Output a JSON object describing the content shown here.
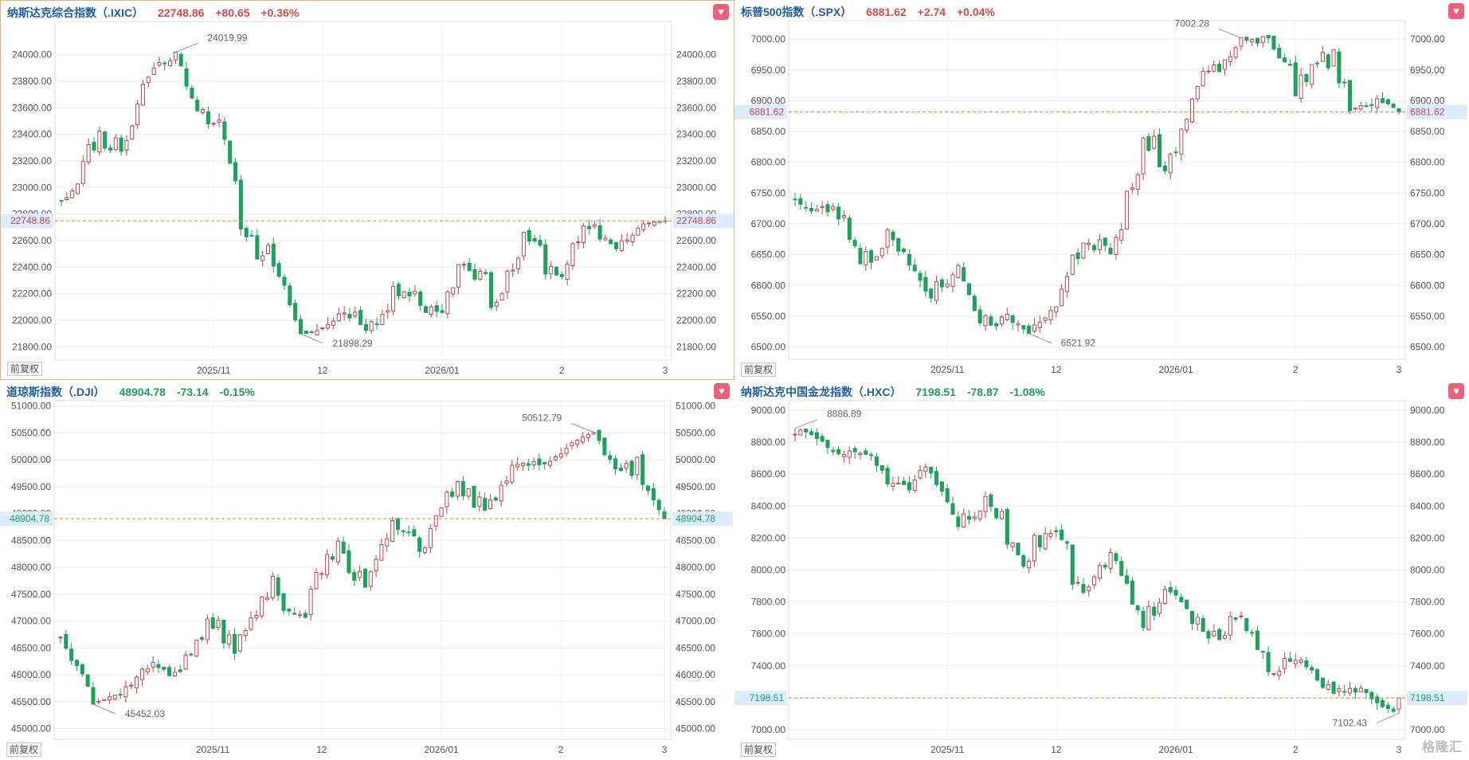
{
  "colors": {
    "up": "#c9434e",
    "down": "#1aa35a",
    "grid": "#ececec",
    "ref": "#e08a2a",
    "axis": "#555555"
  },
  "adjust_label": "前复权",
  "favorite_icon": "heart-icon",
  "watermark": "格隆汇",
  "panels": [
    {
      "name": "纳斯达克综合指数（.IXIC）",
      "price": "22748.86",
      "change": "+80.65",
      "pct": "+0.36%",
      "dir": "up",
      "active": true,
      "chart_data": {
        "type": "candlestick",
        "yticks": [
          21800,
          22000,
          22200,
          22400,
          22600,
          22800,
          23000,
          23200,
          23400,
          23600,
          23800,
          24000
        ],
        "ylim": [
          21700,
          24250
        ],
        "ytick_labels": [
          "21800.00",
          "22000.00",
          "22200.00",
          "22400.00",
          "22600.00",
          "22800.00",
          "23000.00",
          "23200.00",
          "23400.00",
          "23600.00",
          "23800.00",
          "24000.00"
        ],
        "xticks": [
          {
            "label": "2025/11",
            "i": 28
          },
          {
            "label": "12",
            "i": 48
          },
          {
            "label": "2026/01",
            "i": 70
          },
          {
            "label": "2",
            "i": 92
          },
          {
            "label": "3",
            "i": 111
          }
        ],
        "ref_value": 22748.86,
        "ref_label": "22748.86",
        "high_label": "24019.99",
        "high_i": 21,
        "low_label": "21898.29",
        "low_i": 44,
        "start": 22900,
        "end": 22748.86,
        "min": 21898.29,
        "max": 24019.99,
        "seed": 11
      }
    },
    {
      "name": "标普500指数（.SPX）",
      "price": "6881.62",
      "change": "+2.74",
      "pct": "+0.04%",
      "dir": "up",
      "active": false,
      "chart_data": {
        "type": "candlestick",
        "yticks": [
          6500,
          6550,
          6600,
          6650,
          6700,
          6750,
          6800,
          6850,
          6900,
          6950,
          7000
        ],
        "ylim": [
          6480,
          7030
        ],
        "ytick_labels": [
          "6500.00",
          "6550.00",
          "6600.00",
          "6650.00",
          "6700.00",
          "6750.00",
          "6800.00",
          "6850.00",
          "6900.00",
          "6950.00",
          "7000.00"
        ],
        "xticks": [
          {
            "label": "2025/11",
            "i": 28
          },
          {
            "label": "12",
            "i": 48
          },
          {
            "label": "2026/01",
            "i": 70
          },
          {
            "label": "2",
            "i": 92
          },
          {
            "label": "3",
            "i": 111
          }
        ],
        "ref_value": 6881.62,
        "ref_label": "6881.62",
        "high_label": "7002.28",
        "high_i": 82,
        "low_label": "6521.92",
        "low_i": 43,
        "start": 6740,
        "end": 6881.62,
        "min": 6521.92,
        "max": 7002.28,
        "seed": 23
      }
    },
    {
      "name": "道琼斯指数（.DJI）",
      "price": "48904.78",
      "change": "-73.14",
      "pct": "-0.15%",
      "dir": "down",
      "active": false,
      "chart_data": {
        "type": "candlestick",
        "yticks": [
          45000,
          45500,
          46000,
          46500,
          47000,
          47500,
          48000,
          48500,
          49000,
          49500,
          50000,
          50500,
          51000
        ],
        "ylim": [
          44800,
          51100
        ],
        "ytick_labels": [
          "45000.00",
          "45500.00",
          "46000.00",
          "46500.00",
          "47000.00",
          "47500.00",
          "48000.00",
          "48500.00",
          "49000.00",
          "49500.00",
          "50000.00",
          "50500.00",
          "51000.00"
        ],
        "xticks": [
          {
            "label": "2025/11",
            "i": 28
          },
          {
            "label": "12",
            "i": 48
          },
          {
            "label": "2026/01",
            "i": 70
          },
          {
            "label": "2",
            "i": 92
          },
          {
            "label": "3",
            "i": 111
          }
        ],
        "ref_value": 48904.78,
        "ref_label": "48904.78",
        "high_label": "50512.79",
        "high_i": 98,
        "low_label": "45452.03",
        "low_i": 6,
        "start": 46700,
        "end": 48904.78,
        "min": 45452.03,
        "max": 50512.79,
        "seed": 37
      }
    },
    {
      "name": "纳斯达克中国金龙指数（.HXC）",
      "price": "7198.51",
      "change": "-78.87",
      "pct": "-1.08%",
      "dir": "down",
      "active": false,
      "chart_data": {
        "type": "candlestick",
        "yticks": [
          7000,
          7200,
          7400,
          7600,
          7800,
          8000,
          8200,
          8400,
          8600,
          8800,
          9000
        ],
        "ylim": [
          6940,
          9060
        ],
        "ytick_labels": [
          "7000.00",
          "7200.00",
          "7400.00",
          "7600.00",
          "7800.00",
          "8000.00",
          "8200.00",
          "8400.00",
          "8600.00",
          "8800.00",
          "9000.00"
        ],
        "xticks": [
          {
            "label": "2025/11",
            "i": 28
          },
          {
            "label": "12",
            "i": 48
          },
          {
            "label": "2026/01",
            "i": 70
          },
          {
            "label": "2",
            "i": 92
          },
          {
            "label": "3",
            "i": 111
          }
        ],
        "ref_value": 7198.51,
        "ref_label": "7198.51",
        "high_label": "8886.89",
        "high_i": 0,
        "low_label": "7102.43",
        "low_i": 111,
        "start": 8850,
        "end": 7198.51,
        "min": 7102.43,
        "max": 8886.89,
        "seed": 51
      }
    }
  ]
}
